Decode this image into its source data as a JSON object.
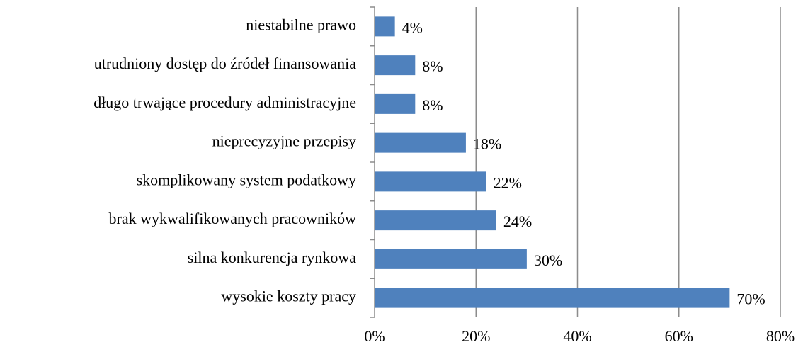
{
  "chart_data": {
    "type": "bar",
    "orientation": "horizontal",
    "categories": [
      "niestabilne prawo",
      "utrudniony dostęp do źródeł finansowania",
      "długo trwające procedury administracyjne",
      "nieprecyzyjne przepisy",
      "skomplikowany system podatkowy",
      "brak wykwalifikowanych pracowników",
      "silna konkurencja rynkowa",
      "wysokie koszty pracy"
    ],
    "values": [
      4,
      8,
      8,
      18,
      22,
      24,
      30,
      70
    ],
    "value_labels": [
      "4%",
      "8%",
      "8%",
      "18%",
      "22%",
      "24%",
      "30%",
      "70%"
    ],
    "color": "#4f81bd",
    "xlim": [
      0,
      80
    ],
    "xticks": [
      {
        "value": 0,
        "label": "0%"
      },
      {
        "value": 20,
        "label": "20%"
      },
      {
        "value": 40,
        "label": "40%"
      },
      {
        "value": 60,
        "label": "60%"
      },
      {
        "value": 80,
        "label": "80%"
      }
    ],
    "grid": true
  }
}
